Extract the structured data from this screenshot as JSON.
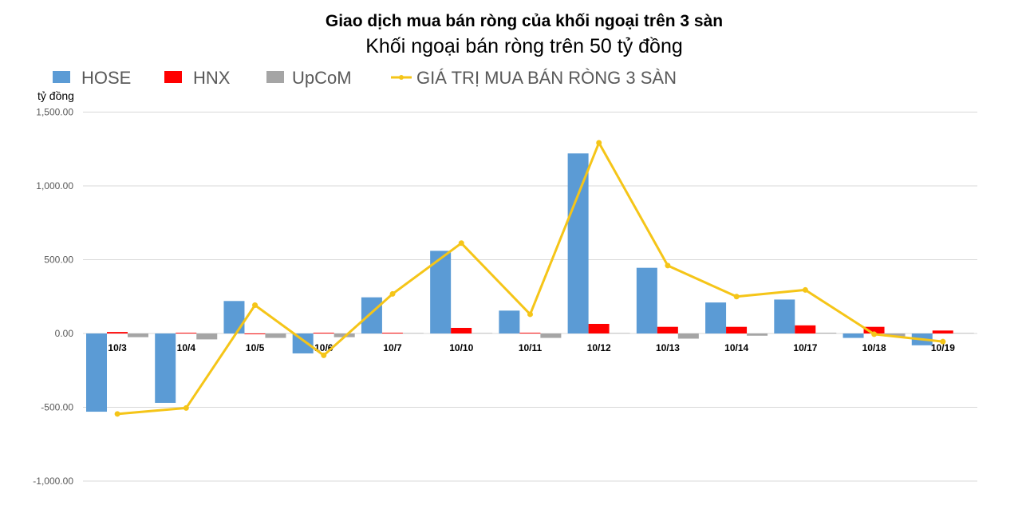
{
  "chart_data": {
    "type": "bar",
    "title": "Giao dịch mua bán ròng của khối ngoại trên 3 sàn",
    "subtitle": "Khối ngoại bán ròng trên 50 tỷ đồng",
    "ylabel": "tỷ đồng",
    "ylim": [
      -1000,
      1500
    ],
    "yticks": [
      1500,
      1000,
      500,
      0,
      -500,
      -1000
    ],
    "ytick_labels": [
      "1,500.00",
      "1,000.00",
      "500.00",
      "0.00",
      "-500.00",
      "-1,000.00"
    ],
    "grid": true,
    "legend_position": "top",
    "categories": [
      "10/3",
      "10/4",
      "10/5",
      "10/6",
      "10/7",
      "10/10",
      "10/11",
      "10/12",
      "10/13",
      "10/14",
      "10/17",
      "10/18",
      "10/19"
    ],
    "series": [
      {
        "name": "HOSE",
        "type": "bar",
        "color": "#5b9bd5",
        "values": [
          -530,
          -470,
          220,
          -135,
          245,
          560,
          155,
          1220,
          445,
          210,
          230,
          -30,
          -80
        ]
      },
      {
        "name": "HNX",
        "type": "bar",
        "color": "#ff0000",
        "values": [
          10,
          5,
          -5,
          5,
          5,
          38,
          5,
          65,
          45,
          45,
          55,
          45,
          20
        ]
      },
      {
        "name": "UpCoM",
        "type": "bar",
        "color": "#a5a5a5",
        "values": [
          -25,
          -40,
          -30,
          -25,
          3,
          3,
          -30,
          3,
          -35,
          -15,
          5,
          -20,
          3
        ]
      },
      {
        "name": "GIÁ TRỊ MUA BÁN RÒNG 3 SÀN",
        "type": "line",
        "color": "#f5c518",
        "values": [
          -545,
          -505,
          192,
          -148,
          268,
          612,
          130,
          1292,
          460,
          250,
          295,
          -5,
          -55
        ]
      }
    ]
  }
}
